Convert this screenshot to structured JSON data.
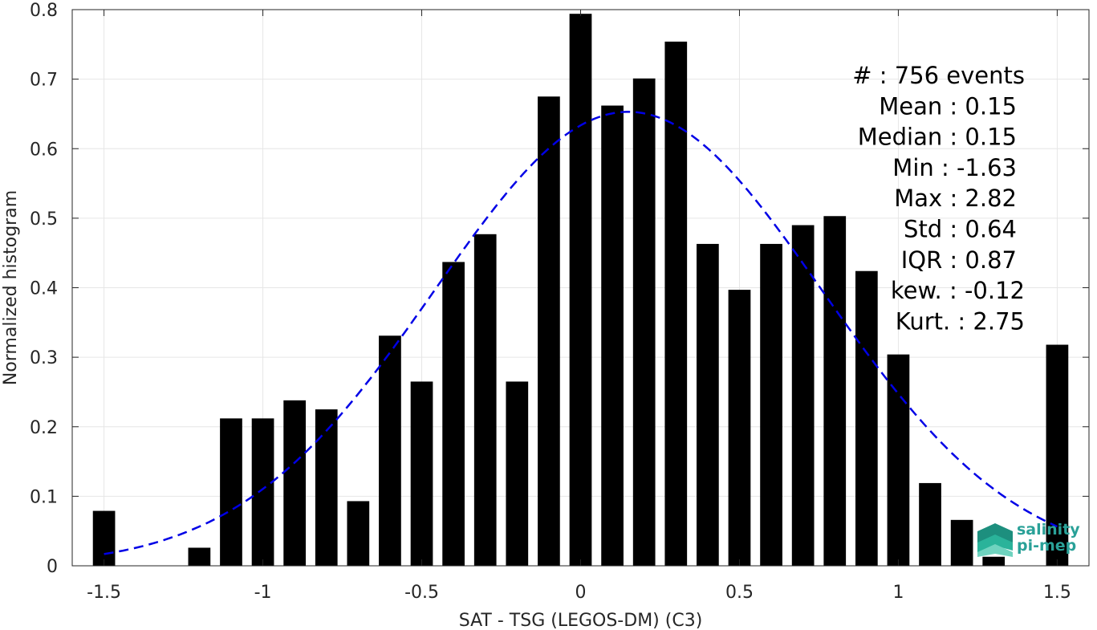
{
  "chart_data": {
    "type": "bar",
    "xlabel": "SAT - TSG (LEGOS-DM) (C3)",
    "ylabel": "Normalized histogram",
    "xlim": [
      -1.6,
      1.6
    ],
    "ylim": [
      0,
      0.8
    ],
    "xticks": [
      -1.5,
      -1,
      -0.5,
      0,
      0.5,
      1,
      1.5
    ],
    "xtick_labels": [
      "-1.5",
      "-1",
      "-0.5",
      "0",
      "0.5",
      "1",
      "1.5"
    ],
    "yticks": [
      0,
      0.1,
      0.2,
      0.3,
      0.4,
      0.5,
      0.6,
      0.7,
      0.8
    ],
    "ytick_labels": [
      "0",
      "0.1",
      "0.2",
      "0.3",
      "0.4",
      "0.5",
      "0.6",
      "0.7",
      "0.8"
    ],
    "grid": true,
    "bar_color": "#000000",
    "bins": [
      {
        "x": -1.5,
        "value": 0.079
      },
      {
        "x": -1.4,
        "value": 0.0
      },
      {
        "x": -1.3,
        "value": 0.0
      },
      {
        "x": -1.2,
        "value": 0.026
      },
      {
        "x": -1.1,
        "value": 0.212
      },
      {
        "x": -1.0,
        "value": 0.212
      },
      {
        "x": -0.9,
        "value": 0.238
      },
      {
        "x": -0.8,
        "value": 0.225
      },
      {
        "x": -0.7,
        "value": 0.093
      },
      {
        "x": -0.6,
        "value": 0.331
      },
      {
        "x": -0.5,
        "value": 0.265
      },
      {
        "x": -0.4,
        "value": 0.437
      },
      {
        "x": -0.3,
        "value": 0.477
      },
      {
        "x": -0.2,
        "value": 0.265
      },
      {
        "x": -0.1,
        "value": 0.675
      },
      {
        "x": 0.0,
        "value": 0.794
      },
      {
        "x": 0.1,
        "value": 0.662
      },
      {
        "x": 0.2,
        "value": 0.701
      },
      {
        "x": 0.3,
        "value": 0.754
      },
      {
        "x": 0.4,
        "value": 0.463
      },
      {
        "x": 0.5,
        "value": 0.397
      },
      {
        "x": 0.6,
        "value": 0.463
      },
      {
        "x": 0.7,
        "value": 0.49
      },
      {
        "x": 0.8,
        "value": 0.503
      },
      {
        "x": 0.9,
        "value": 0.424
      },
      {
        "x": 1.0,
        "value": 0.304
      },
      {
        "x": 1.1,
        "value": 0.119
      },
      {
        "x": 1.2,
        "value": 0.066
      },
      {
        "x": 1.3,
        "value": 0.013
      },
      {
        "x": 1.4,
        "value": 0.0
      },
      {
        "x": 1.5,
        "value": 0.318
      }
    ],
    "fit_curve": {
      "style": "dashed",
      "color": "#0000e6",
      "mean": 0.15,
      "std": 0.61,
      "x_range": [
        -1.5,
        1.5
      ]
    },
    "stats": [
      "#  : 756 events",
      "Mean : 0.15",
      "Median : 0.15",
      "Min : -1.63",
      "Max : 2.82",
      "Std : 0.64",
      "IQR : 0.87",
      "kew. : -0.12",
      "Kurt. : 2.75"
    ]
  },
  "logo": {
    "line1": "salinity",
    "line2": "pi-mep",
    "color": "#2aa198"
  }
}
